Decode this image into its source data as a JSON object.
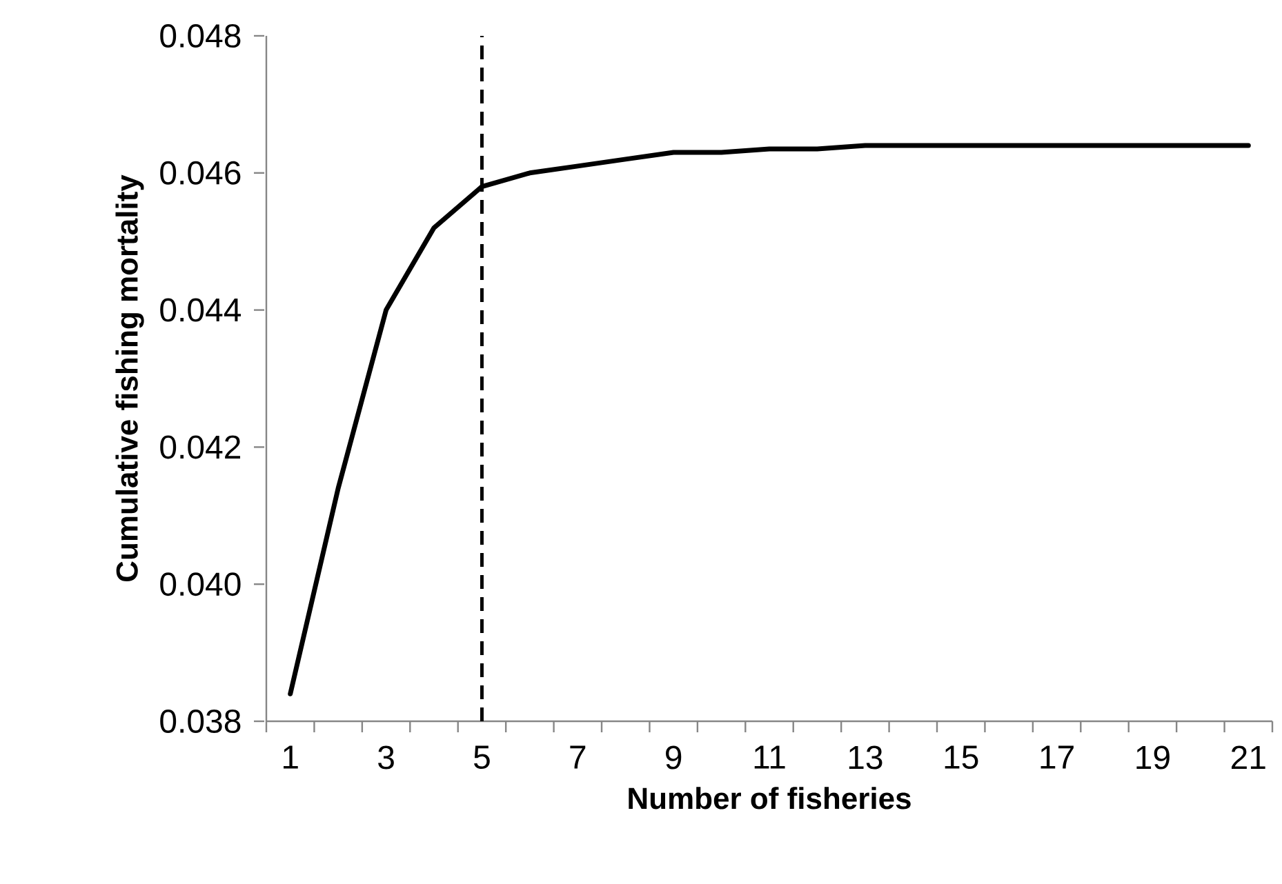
{
  "chart_data": {
    "type": "line",
    "xlabel": "Number of fisheries",
    "ylabel": "Cumulative fishing mortality",
    "x": [
      1,
      2,
      3,
      4,
      5,
      6,
      7,
      8,
      9,
      10,
      11,
      12,
      13,
      14,
      15,
      16,
      17,
      18,
      19,
      20,
      21
    ],
    "values": [
      0.0384,
      0.0414,
      0.044,
      0.0452,
      0.0458,
      0.046,
      0.0461,
      0.0462,
      0.0463,
      0.0463,
      0.04635,
      0.04635,
      0.0464,
      0.0464,
      0.0464,
      0.0464,
      0.0464,
      0.0464,
      0.0464,
      0.0464,
      0.0464
    ],
    "color": "#000000",
    "line_style": "solid",
    "marker": "none",
    "xlim": [
      0.5,
      21.5
    ],
    "xticks": [
      1,
      3,
      5,
      7,
      9,
      11,
      13,
      15,
      17,
      19,
      21,
      {
        "value": 0.5,
        "label": null
      },
      {
        "value": 1.5,
        "label": null
      },
      {
        "value": 2.5,
        "label": null
      },
      {
        "value": 3.5,
        "label": null
      },
      {
        "value": 4.5,
        "label": null
      },
      {
        "value": 5.5,
        "label": null
      },
      {
        "value": 6.5,
        "label": null
      },
      {
        "value": 7.5,
        "label": null
      },
      {
        "value": 8.5,
        "label": null
      },
      {
        "value": 9.5,
        "label": null
      },
      {
        "value": 10.5,
        "label": null
      },
      {
        "value": 11.5,
        "label": null
      },
      {
        "value": 12.5,
        "label": null
      },
      {
        "value": 13.5,
        "label": null
      },
      {
        "value": 14.5,
        "label": null
      },
      {
        "value": 15.5,
        "label": null
      },
      {
        "value": 16.5,
        "label": null
      },
      {
        "value": 17.5,
        "label": null
      },
      {
        "value": 18.5,
        "label": null
      },
      {
        "value": 19.5,
        "label": null
      },
      {
        "value": 20.5,
        "label": null
      },
      {
        "value": 21.5,
        "label": null
      }
    ],
    "ylim": [
      0.038,
      0.048
    ],
    "yticks": [
      {
        "value": 0.038,
        "label": "0.038"
      },
      {
        "value": 0.04,
        "label": "0.040"
      },
      {
        "value": 0.042,
        "label": "0.042"
      },
      {
        "value": 0.044,
        "label": "0.044"
      },
      {
        "value": 0.046,
        "label": "0.046"
      },
      {
        "value": 0.048,
        "label": "0.048"
      }
    ],
    "ref_lines": [
      {
        "axis": "x",
        "value": 5,
        "line_style": "dashed",
        "color": "#000000"
      }
    ],
    "grid": false
  }
}
